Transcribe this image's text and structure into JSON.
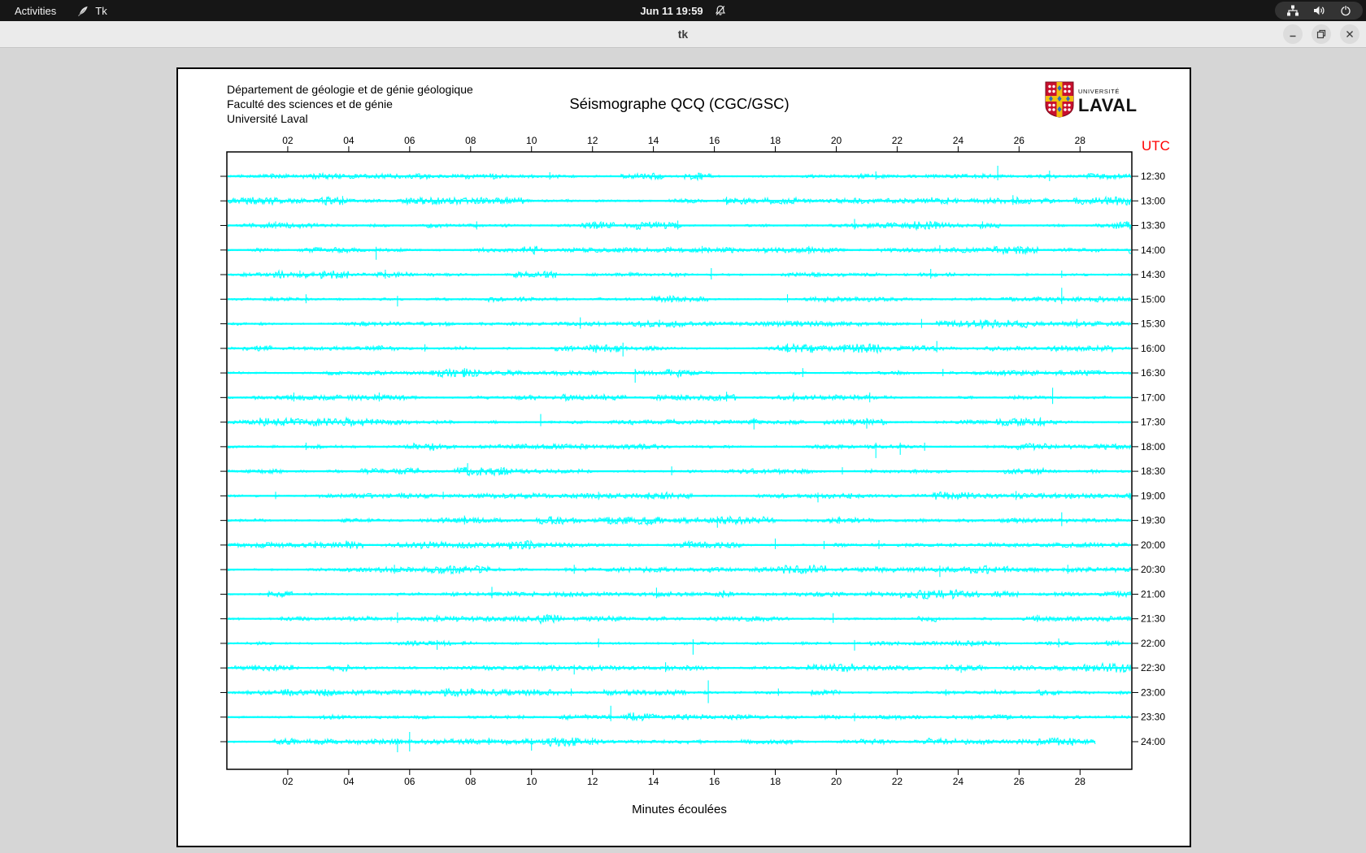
{
  "top_bar": {
    "activities": "Activities",
    "app_name": "Tk",
    "clock": "Jun 11 19:59",
    "icons": [
      "tk-feather-icon",
      "bell-muted-icon",
      "network-icon",
      "volume-icon",
      "power-icon"
    ]
  },
  "title_bar": {
    "title": "tk"
  },
  "seismograph": {
    "header_lines": [
      "Département de géologie et de génie géologique",
      "Faculté des sciences et de génie",
      "Université Laval"
    ],
    "title": "Séismographe QCQ (CGC/GSC)",
    "logo_small": "UNIVERSITÉ",
    "logo_large": "LAVAL",
    "utc_label": "UTC",
    "xlabel": "Minutes écoulées",
    "trace_color": "#00ffff",
    "utc_color": "#ff0000",
    "x_ticks": [
      "02",
      "04",
      "06",
      "08",
      "10",
      "12",
      "14",
      "16",
      "18",
      "20",
      "22",
      "24",
      "26",
      "28"
    ]
  },
  "chart_data": {
    "type": "line",
    "title": "Séismographe QCQ (CGC/GSC)",
    "xlabel": "Minutes écoulées",
    "x_range_minutes": [
      0,
      29.7
    ],
    "x_tick_interval_minutes": 2,
    "x_ticks": [
      "02",
      "04",
      "06",
      "08",
      "10",
      "12",
      "14",
      "16",
      "18",
      "20",
      "22",
      "24",
      "26",
      "28"
    ],
    "right_axis_label": "UTC",
    "row_interval_minutes": 30,
    "rows": [
      {
        "label": "12:30",
        "spikes": [
          [
            10.6,
            5,
            4
          ],
          [
            21.3,
            6,
            4
          ],
          [
            25.3,
            13,
            5
          ],
          [
            27.0,
            7,
            6
          ]
        ]
      },
      {
        "label": "13:00",
        "spikes": [
          [
            3.8,
            6,
            5
          ],
          [
            9.2,
            5,
            4
          ],
          [
            16.4,
            5,
            5
          ],
          [
            25.8,
            7,
            5
          ]
        ]
      },
      {
        "label": "13:30",
        "spikes": [
          [
            1.6,
            5,
            4
          ],
          [
            8.2,
            5,
            5
          ],
          [
            14.8,
            6,
            5
          ],
          [
            20.6,
            8,
            5
          ],
          [
            24.8,
            5,
            4
          ]
        ]
      },
      {
        "label": "14:00",
        "spikes": [
          [
            4.9,
            4,
            12
          ],
          [
            15.6,
            5,
            4
          ],
          [
            19.1,
            5,
            5
          ],
          [
            23.4,
            6,
            4
          ]
        ]
      },
      {
        "label": "14:30",
        "spikes": [
          [
            2.4,
            5,
            4
          ],
          [
            5.2,
            6,
            5
          ],
          [
            15.9,
            8,
            6
          ],
          [
            23.1,
            7,
            5
          ],
          [
            27.4,
            5,
            4
          ]
        ]
      },
      {
        "label": "15:00",
        "spikes": [
          [
            2.6,
            6,
            5
          ],
          [
            5.6,
            4,
            9
          ],
          [
            18.4,
            6,
            4
          ],
          [
            27.4,
            14,
            6
          ]
        ]
      },
      {
        "label": "15:30",
        "spikes": [
          [
            11.6,
            8,
            6
          ],
          [
            14.2,
            5,
            4
          ],
          [
            22.8,
            6,
            5
          ],
          [
            27.9,
            6,
            5
          ]
        ]
      },
      {
        "label": "16:00",
        "spikes": [
          [
            6.5,
            5,
            4
          ],
          [
            13.0,
            7,
            10
          ],
          [
            18.4,
            6,
            5
          ],
          [
            23.3,
            9,
            5
          ]
        ]
      },
      {
        "label": "16:30",
        "spikes": [
          [
            7.8,
            6,
            5
          ],
          [
            13.4,
            5,
            12
          ],
          [
            18.9,
            6,
            5
          ],
          [
            23.5,
            5,
            4
          ]
        ]
      },
      {
        "label": "17:00",
        "spikes": [
          [
            2.2,
            6,
            5
          ],
          [
            5.0,
            6,
            5
          ],
          [
            16.4,
            7,
            5
          ],
          [
            18.6,
            6,
            5
          ],
          [
            21.1,
            6,
            6
          ],
          [
            27.1,
            12,
            8
          ]
        ]
      },
      {
        "label": "17:30",
        "spikes": [
          [
            10.3,
            10,
            5
          ],
          [
            17.3,
            5,
            9
          ],
          [
            21.0,
            5,
            8
          ],
          [
            26.7,
            6,
            5
          ]
        ]
      },
      {
        "label": "18:00",
        "spikes": [
          [
            2.6,
            5,
            4
          ],
          [
            21.3,
            5,
            14
          ],
          [
            22.1,
            5,
            10
          ],
          [
            22.9,
            5,
            5
          ]
        ]
      },
      {
        "label": "18:30",
        "spikes": [
          [
            7.9,
            10,
            5
          ],
          [
            9.0,
            5,
            4
          ],
          [
            14.6,
            6,
            5
          ],
          [
            20.2,
            5,
            4
          ]
        ]
      },
      {
        "label": "19:00",
        "spikes": [
          [
            1.6,
            5,
            4
          ],
          [
            7.1,
            5,
            4
          ],
          [
            12.2,
            5,
            5
          ],
          [
            19.4,
            4,
            8
          ],
          [
            25.9,
            6,
            5
          ]
        ]
      },
      {
        "label": "19:30",
        "spikes": [
          [
            7.8,
            6,
            5
          ],
          [
            16.1,
            5,
            9
          ],
          [
            20.1,
            5,
            4
          ],
          [
            27.4,
            10,
            7
          ]
        ]
      },
      {
        "label": "20:00",
        "spikes": [
          [
            2.9,
            5,
            4
          ],
          [
            18.0,
            8,
            5
          ],
          [
            19.6,
            5,
            5
          ],
          [
            21.4,
            6,
            5
          ]
        ]
      },
      {
        "label": "20:30",
        "spikes": [
          [
            5.5,
            6,
            5
          ],
          [
            11.4,
            6,
            5
          ],
          [
            23.4,
            5,
            9
          ],
          [
            27.6,
            6,
            5
          ]
        ]
      },
      {
        "label": "21:00",
        "spikes": [
          [
            8.7,
            9,
            5
          ],
          [
            14.1,
            8,
            5
          ],
          [
            22.9,
            4,
            4
          ]
        ]
      },
      {
        "label": "21:30",
        "spikes": [
          [
            5.6,
            8,
            5
          ],
          [
            6.9,
            5,
            4
          ],
          [
            19.9,
            7,
            5
          ],
          [
            26.6,
            5,
            4
          ]
        ]
      },
      {
        "label": "22:00",
        "spikes": [
          [
            6.9,
            4,
            8
          ],
          [
            12.2,
            6,
            5
          ],
          [
            15.3,
            5,
            14
          ],
          [
            20.6,
            4,
            9
          ],
          [
            27.3,
            6,
            5
          ]
        ]
      },
      {
        "label": "22:30",
        "spikes": [
          [
            11.4,
            4,
            8
          ],
          [
            14.4,
            7,
            5
          ],
          [
            24.1,
            4,
            6
          ]
        ]
      },
      {
        "label": "23:00",
        "spikes": [
          [
            11.3,
            5,
            4
          ],
          [
            15.8,
            15,
            13
          ],
          [
            18.1,
            5,
            4
          ],
          [
            23.6,
            4,
            4
          ]
        ]
      },
      {
        "label": "23:30",
        "spikes": [
          [
            12.6,
            14,
            5
          ],
          [
            20.6,
            5,
            5
          ]
        ]
      },
      {
        "label": "24:00",
        "end_min": 28.5,
        "spikes": [
          [
            5.6,
            4,
            13
          ],
          [
            6.0,
            12,
            12
          ],
          [
            8.6,
            5,
            4
          ],
          [
            10.0,
            4,
            11
          ],
          [
            12.0,
            5,
            4
          ]
        ]
      }
    ]
  }
}
